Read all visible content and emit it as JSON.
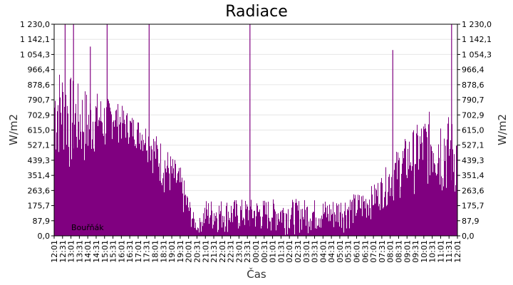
{
  "chart_data": {
    "type": "bar",
    "title": "Radiace",
    "xlabel": "Čas",
    "ylabel": "W/m2",
    "ylabel_right": "W/m2",
    "ylim": [
      0,
      1230
    ],
    "y_ticks": [
      "0,0",
      "87,9",
      "175,7",
      "263,6",
      "351,4",
      "439,3",
      "527,1",
      "615,0",
      "702,9",
      "790,7",
      "878,6",
      "966,4",
      "1 054,3",
      "1 142,1",
      "1 230,0"
    ],
    "x_ticks": [
      "12:01",
      "12:31",
      "13:01",
      "13:31",
      "14:01",
      "14:31",
      "15:01",
      "15:31",
      "16:01",
      "16:31",
      "17:01",
      "17:31",
      "18:01",
      "18:31",
      "19:01",
      "19:31",
      "20:01",
      "20:31",
      "21:01",
      "21:31",
      "22:01",
      "22:31",
      "23:01",
      "23:31",
      "00:01",
      "00:31",
      "01:01",
      "01:31",
      "02:01",
      "02:31",
      "03:01",
      "03:31",
      "04:01",
      "04:31",
      "05:01",
      "05:31",
      "06:01",
      "06:31",
      "07:01",
      "07:31",
      "08:01",
      "08:31",
      "09:01",
      "09:31",
      "10:01",
      "10:31",
      "11:01",
      "11:31",
      "12:01"
    ],
    "grid": true,
    "legend_position": "bottom-left",
    "series": [
      {
        "name": "Bouřňák",
        "color": "#800080",
        "envelope": [
          {
            "x": "12:01",
            "low": 350,
            "high": 1000
          },
          {
            "x": "12:31",
            "low": 420,
            "high": 980
          },
          {
            "x": "13:01",
            "low": 300,
            "high": 930
          },
          {
            "x": "13:31",
            "low": 380,
            "high": 880
          },
          {
            "x": "14:01",
            "low": 330,
            "high": 860
          },
          {
            "x": "14:31",
            "low": 480,
            "high": 840
          },
          {
            "x": "15:01",
            "low": 440,
            "high": 810
          },
          {
            "x": "15:31",
            "low": 560,
            "high": 790
          },
          {
            "x": "16:01",
            "low": 520,
            "high": 760
          },
          {
            "x": "16:31",
            "low": 520,
            "high": 710
          },
          {
            "x": "17:01",
            "low": 490,
            "high": 680
          },
          {
            "x": "17:31",
            "low": 440,
            "high": 650
          },
          {
            "x": "18:01",
            "low": 320,
            "high": 600
          },
          {
            "x": "18:31",
            "low": 230,
            "high": 540
          },
          {
            "x": "19:01",
            "low": 190,
            "high": 470
          },
          {
            "x": "19:31",
            "low": 130,
            "high": 400
          },
          {
            "x": "20:01",
            "low": 40,
            "high": 230
          },
          {
            "x": "20:31",
            "low": 15,
            "high": 60
          },
          {
            "x": "21:01",
            "low": 10,
            "high": 215
          },
          {
            "x": "21:31",
            "low": 5,
            "high": 215
          },
          {
            "x": "22:01",
            "low": 5,
            "high": 215
          },
          {
            "x": "22:31",
            "low": 5,
            "high": 215
          },
          {
            "x": "23:01",
            "low": 5,
            "high": 215
          },
          {
            "x": "23:31",
            "low": 5,
            "high": 215
          },
          {
            "x": "00:01",
            "low": 5,
            "high": 215
          },
          {
            "x": "00:31",
            "low": 5,
            "high": 215
          },
          {
            "x": "01:01",
            "low": 5,
            "high": 215
          },
          {
            "x": "01:31",
            "low": 5,
            "high": 215
          },
          {
            "x": "02:01",
            "low": 5,
            "high": 215
          },
          {
            "x": "02:31",
            "low": 5,
            "high": 215
          },
          {
            "x": "03:01",
            "low": 5,
            "high": 215
          },
          {
            "x": "03:31",
            "low": 5,
            "high": 215
          },
          {
            "x": "04:01",
            "low": 5,
            "high": 215
          },
          {
            "x": "04:31",
            "low": 5,
            "high": 215
          },
          {
            "x": "05:01",
            "low": 10,
            "high": 230
          },
          {
            "x": "05:31",
            "low": 30,
            "high": 240
          },
          {
            "x": "06:01",
            "low": 45,
            "high": 250
          },
          {
            "x": "06:31",
            "low": 60,
            "high": 270
          },
          {
            "x": "07:01",
            "low": 110,
            "high": 300
          },
          {
            "x": "07:31",
            "low": 150,
            "high": 360
          },
          {
            "x": "08:01",
            "low": 170,
            "high": 450
          },
          {
            "x": "08:31",
            "low": 200,
            "high": 520
          },
          {
            "x": "09:01",
            "low": 230,
            "high": 590
          },
          {
            "x": "09:31",
            "low": 240,
            "high": 640
          },
          {
            "x": "10:01",
            "low": 260,
            "high": 700
          },
          {
            "x": "10:31",
            "low": 240,
            "high": 740
          },
          {
            "x": "11:01",
            "low": 170,
            "high": 760
          },
          {
            "x": "11:31",
            "low": 200,
            "high": 700
          },
          {
            "x": "12:01",
            "low": 180,
            "high": 640
          }
        ],
        "spikes": [
          {
            "x": "12:31",
            "value": 1230
          },
          {
            "x": "13:01",
            "value": 1230
          },
          {
            "x": "14:01",
            "value": 1100
          },
          {
            "x": "15:01",
            "value": 1230
          },
          {
            "x": "17:31",
            "value": 1230
          },
          {
            "x": "23:31",
            "value": 1230
          },
          {
            "x": "08:01",
            "value": 1080
          },
          {
            "x": "11:31",
            "value": 1230
          }
        ]
      }
    ]
  }
}
